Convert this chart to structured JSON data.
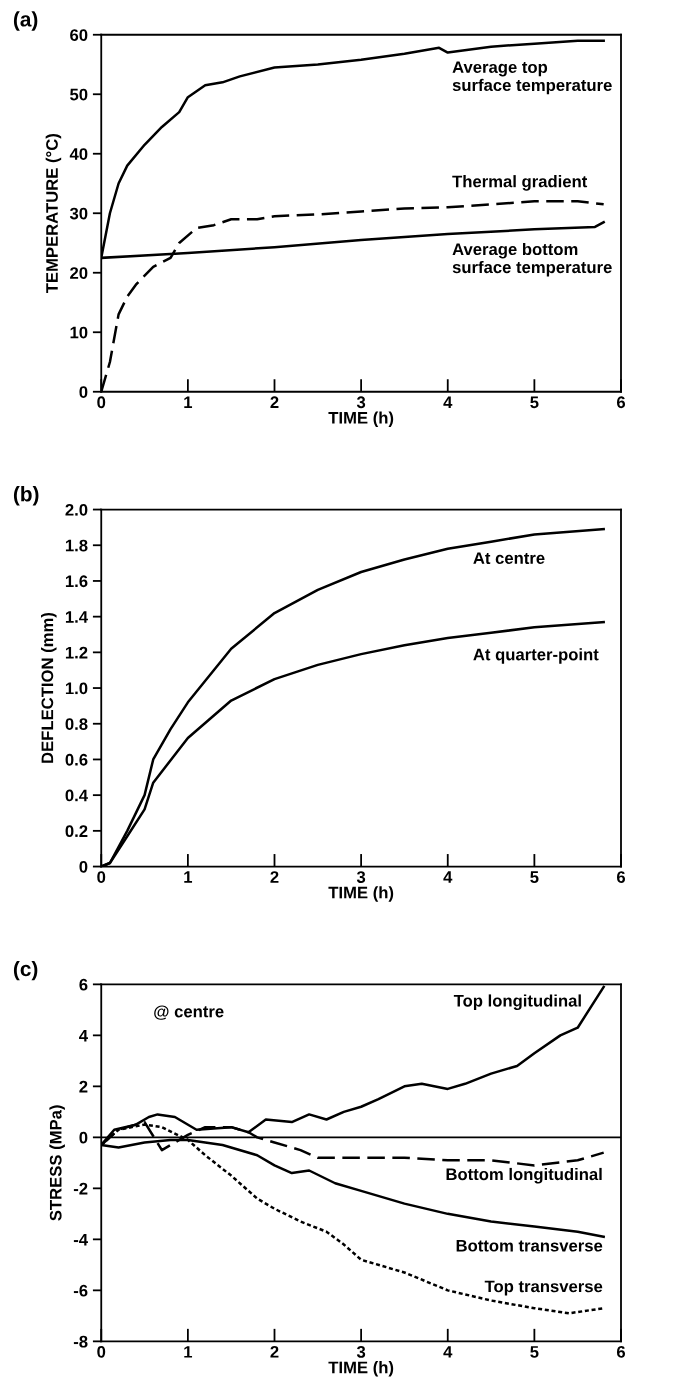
{
  "chart_data": [
    {
      "type": "line",
      "title": "(a)",
      "xlabel": "TIME (h)",
      "ylabel": "TEMPERATURE (°C)",
      "xlim": [
        0,
        6
      ],
      "xticks": [
        0,
        1,
        2,
        3,
        4,
        5,
        6
      ],
      "ylim": [
        0,
        60
      ],
      "yticks": [
        0,
        10,
        20,
        30,
        40,
        50,
        60
      ],
      "grid": false,
      "series": [
        {
          "name": "Average top\nsurface temperature",
          "color": "#000000",
          "line_style": "solid",
          "x": [
            0,
            0.1,
            0.2,
            0.3,
            0.5,
            0.7,
            0.9,
            1,
            1.2,
            1.4,
            1.6,
            2,
            2.5,
            3,
            3.5,
            3.9,
            4,
            4.5,
            5,
            5.5,
            5.8
          ],
          "values": [
            22.5,
            30,
            35,
            38,
            41.5,
            44.5,
            47,
            49.5,
            51.5,
            52,
            53,
            54.5,
            55,
            55.8,
            56.8,
            57.8,
            57,
            58,
            58.5,
            59,
            59
          ]
        },
        {
          "name": "Thermal gradient",
          "color": "#000000",
          "line_style": "dashed",
          "x": [
            0,
            0.1,
            0.2,
            0.3,
            0.4,
            0.6,
            0.8,
            0.9,
            1.1,
            1.3,
            1.5,
            1.8,
            2,
            2.5,
            3,
            3.5,
            4,
            4.5,
            5,
            5.5,
            5.8
          ],
          "values": [
            0,
            5,
            13,
            16,
            18,
            21,
            22.5,
            25,
            27.5,
            28,
            29,
            29,
            29.5,
            29.8,
            30.3,
            30.8,
            31,
            31.5,
            32,
            32,
            31.5
          ]
        },
        {
          "name": "Average bottom\nsurface temperature",
          "color": "#000000",
          "line_style": "solid",
          "x": [
            0,
            1,
            2,
            3,
            4,
            5,
            5.7,
            5.8
          ],
          "values": [
            22.5,
            23.3,
            24.3,
            25.5,
            26.5,
            27.3,
            27.7,
            28.5
          ]
        }
      ]
    },
    {
      "type": "line",
      "title": "(b)",
      "xlabel": "TIME (h)",
      "ylabel": "DEFLECTION (mm)",
      "xlim": [
        0,
        6
      ],
      "xticks": [
        0,
        1,
        2,
        3,
        4,
        5,
        6
      ],
      "ylim": [
        0,
        2.0
      ],
      "yticks": [
        {
          "value": 0,
          "label": "0"
        },
        {
          "value": 0.2,
          "label": "0.2"
        },
        {
          "value": 0.4,
          "label": "0.4"
        },
        {
          "value": 0.6,
          "label": "0.6"
        },
        {
          "value": 0.8,
          "label": "0.8"
        },
        {
          "value": 1.0,
          "label": "1.0"
        },
        {
          "value": 1.2,
          "label": "1.2"
        },
        {
          "value": 1.4,
          "label": "1.4"
        },
        {
          "value": 1.6,
          "label": "1.6"
        },
        {
          "value": 1.8,
          "label": "1.8"
        },
        {
          "value": 2.0,
          "label": "2.0"
        }
      ],
      "grid": false,
      "series": [
        {
          "name": "At centre",
          "color": "#000000",
          "line_style": "solid",
          "x": [
            0,
            0.1,
            0.3,
            0.5,
            0.6,
            0.8,
            1,
            1.5,
            2,
            2.5,
            3,
            3.5,
            4,
            4.5,
            5,
            5.8
          ],
          "values": [
            0,
            0.02,
            0.2,
            0.4,
            0.6,
            0.77,
            0.92,
            1.22,
            1.42,
            1.55,
            1.65,
            1.72,
            1.78,
            1.82,
            1.86,
            1.89
          ]
        },
        {
          "name": "At quarter-point",
          "color": "#000000",
          "line_style": "solid",
          "x": [
            0,
            0.1,
            0.3,
            0.5,
            0.6,
            1,
            1.5,
            2,
            2.5,
            3,
            3.5,
            4,
            4.5,
            5,
            5.8
          ],
          "values": [
            0,
            0.02,
            0.17,
            0.32,
            0.47,
            0.72,
            0.93,
            1.05,
            1.13,
            1.19,
            1.24,
            1.28,
            1.31,
            1.34,
            1.37
          ]
        }
      ]
    },
    {
      "type": "line",
      "title": "(c)",
      "xlabel": "TIME (h)",
      "ylabel": "STRESS (MPa)",
      "xlim": [
        0,
        6
      ],
      "xticks": [
        0,
        1,
        2,
        3,
        4,
        5,
        6
      ],
      "ylim": [
        -8,
        6
      ],
      "yticks": [
        -8,
        -6,
        -4,
        -2,
        0,
        2,
        4,
        6
      ],
      "grid": false,
      "ref_lines": [
        {
          "axis": "y",
          "value": 0,
          "color": "#000000",
          "line_style": "solid"
        }
      ],
      "series": [
        {
          "name": "Top longitudinal",
          "color": "#000000",
          "line_style": "solid",
          "x": [
            0,
            0.15,
            0.4,
            0.55,
            0.65,
            0.85,
            1.1,
            1.5,
            1.7,
            1.9,
            2.2,
            2.4,
            2.6,
            2.8,
            3,
            3.2,
            3.5,
            3.7,
            4,
            4.2,
            4.5,
            4.8,
            5,
            5.3,
            5.5,
            5.8
          ],
          "values": [
            -0.3,
            0.3,
            0.5,
            0.8,
            0.9,
            0.8,
            0.3,
            0.4,
            0.2,
            0.7,
            0.6,
            0.9,
            0.7,
            1,
            1.2,
            1.5,
            2,
            2.1,
            1.9,
            2.1,
            2.5,
            2.8,
            3.3,
            4,
            4.3,
            5.9
          ]
        },
        {
          "name": "Bottom longitudinal",
          "color": "#000000",
          "line_style": "dashed",
          "x": [
            0,
            0.2,
            0.5,
            0.7,
            1.0,
            1.2,
            1.5,
            1.7,
            1.8,
            2,
            2.3,
            2.5,
            3,
            3.5,
            4,
            4.5,
            5,
            5.5,
            5.8
          ],
          "values": [
            -0.3,
            0.3,
            0.6,
            -0.5,
            0.1,
            0.4,
            0.4,
            0.2,
            0,
            -0.2,
            -0.5,
            -0.8,
            -0.8,
            -0.8,
            -0.9,
            -0.9,
            -1.1,
            -0.9,
            -0.6
          ]
        },
        {
          "name": "Bottom transverse",
          "color": "#000000",
          "line_style": "solid",
          "x": [
            0,
            0.2,
            0.5,
            0.8,
            1,
            1.4,
            1.8,
            2,
            2.2,
            2.4,
            2.7,
            3,
            3.5,
            4,
            4.5,
            5,
            5.5,
            5.8
          ],
          "values": [
            -0.3,
            -0.4,
            -0.2,
            -0.1,
            -0.1,
            -0.3,
            -0.7,
            -1.1,
            -1.4,
            -1.3,
            -1.8,
            -2.1,
            -2.6,
            -3.0,
            -3.3,
            -3.5,
            -3.7,
            -3.9
          ]
        },
        {
          "name": "Top transverse",
          "color": "#000000",
          "line_style": "dotted",
          "x": [
            0,
            0.2,
            0.5,
            0.7,
            1,
            1.2,
            1.5,
            1.8,
            2,
            2.3,
            2.6,
            2.8,
            3,
            3.5,
            4,
            4.5,
            5,
            5.4,
            5.8
          ],
          "values": [
            -0.3,
            0.3,
            0.5,
            0.4,
            -0.1,
            -0.7,
            -1.5,
            -2.4,
            -2.8,
            -3.3,
            -3.7,
            -4.2,
            -4.8,
            -5.3,
            -6.0,
            -6.4,
            -6.7,
            -6.9,
            -6.7
          ]
        }
      ],
      "annotations": [
        "@ centre"
      ]
    }
  ]
}
